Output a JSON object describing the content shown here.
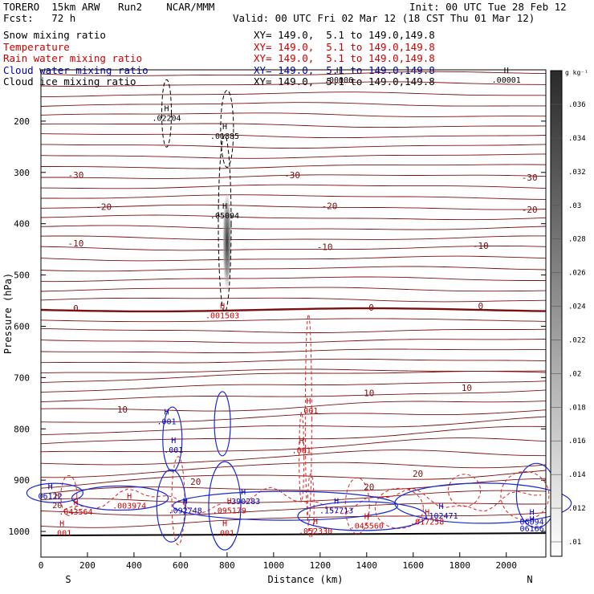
{
  "header": {
    "model": "TORERO  15km ARW   Run2    NCAR/MMM",
    "init": "Init: 00 UTC Tue 28 Feb 12",
    "fcst": "Fcst:   72 h",
    "valid": "Valid: 00 UTC Fri 02 Mar 12 (18 CST Thu 01 Mar 12)"
  },
  "fields": [
    {
      "name": "Snow mixing ratio",
      "xy": "XY= 149.0,  5.1 to 149.0,149.8",
      "color": "#000000"
    },
    {
      "name": "Temperature",
      "xy": "XY= 149.0,  5.1 to 149.0,149.8",
      "color": "#cc0000"
    },
    {
      "name": "Rain water mixing ratio",
      "xy": "XY= 149.0,  5.1 to 149.0,149.8",
      "color": "#cc0000"
    },
    {
      "name": "Cloud water mixing ratio",
      "xy": "XY= 149.0,  5.1 to 149.0,149.8",
      "color": "#0000bb"
    },
    {
      "name": "Cloud ice mixing ratio",
      "xy": "XY= 149.0,  5.1 to 149.0,149.8",
      "color": "#000000"
    }
  ],
  "chart_data": {
    "type": "contour-cross-section",
    "xlabel": "Distance (km)",
    "ylabel": "Pressure (hPa)",
    "xlim": [
      0,
      2170
    ],
    "ylim": [
      1050,
      100
    ],
    "x_ticks": [
      0,
      200,
      400,
      600,
      800,
      1000,
      1200,
      1400,
      1600,
      1800,
      2000
    ],
    "y_ticks": [
      200,
      300,
      400,
      500,
      600,
      700,
      800,
      900,
      1000
    ],
    "x_end_labels": {
      "left": "S",
      "right": "N"
    },
    "colorbar": {
      "unit": "g kg⁻¹",
      "levels": [
        ".01",
        ".012",
        ".014",
        ".016",
        ".018",
        ".02",
        ".022",
        ".024",
        ".026",
        ".028",
        ".03",
        ".032",
        ".034",
        ".036"
      ]
    },
    "temperature_contour_labels": [
      {
        "label": "-30",
        "x": 150,
        "p": 305
      },
      {
        "label": "-30",
        "x": 1080,
        "p": 305
      },
      {
        "label": "-30",
        "x": 2100,
        "p": 310
      },
      {
        "label": "-20",
        "x": 270,
        "p": 367
      },
      {
        "label": "-20",
        "x": 1240,
        "p": 365
      },
      {
        "label": "-20",
        "x": 2100,
        "p": 372
      },
      {
        "label": "-10",
        "x": 150,
        "p": 438
      },
      {
        "label": "-10",
        "x": 1220,
        "p": 445
      },
      {
        "label": "-10",
        "x": 1890,
        "p": 443
      },
      {
        "label": "0",
        "x": 150,
        "p": 565
      },
      {
        "label": "0",
        "x": 1420,
        "p": 563
      },
      {
        "label": "0",
        "x": 1890,
        "p": 560
      },
      {
        "label": "10",
        "x": 350,
        "p": 762
      },
      {
        "label": "10",
        "x": 1410,
        "p": 730
      },
      {
        "label": "10",
        "x": 1830,
        "p": 720
      },
      {
        "label": "20",
        "x": 665,
        "p": 903
      },
      {
        "label": "20",
        "x": 1410,
        "p": 913
      },
      {
        "label": "20",
        "x": 1620,
        "p": 887
      }
    ],
    "extrema_labels": [
      {
        "type": "H",
        "value": ".02204",
        "x": 540,
        "p": 195,
        "field": "ice"
      },
      {
        "type": "H",
        "value": ".01885",
        "x": 790,
        "p": 230,
        "field": "ice"
      },
      {
        "type": "H",
        "value": ".05094",
        "x": 790,
        "p": 385,
        "field": "ice"
      },
      {
        "type": "H",
        "value": ".00006",
        "x": 1280,
        "p": 120,
        "field": "ice"
      },
      {
        "type": "H",
        "value": ".00001",
        "x": 2000,
        "p": 120,
        "field": "ice"
      },
      {
        "type": "H",
        "value": ".001503",
        "x": 780,
        "p": 580,
        "field": "rain"
      },
      {
        "type": "H",
        "value": ".001",
        "x": 1150,
        "p": 765,
        "field": "rain"
      },
      {
        "type": "H",
        "value": ".001",
        "x": 1120,
        "p": 843,
        "field": "rain"
      },
      {
        "type": "H",
        "value": ".001",
        "x": 570,
        "p": 842,
        "field": "cloud"
      },
      {
        "type": "H",
        "value": ".001",
        "x": 540,
        "p": 786,
        "field": "cloud"
      },
      {
        "type": "H",
        "value": "06122",
        "x": 40,
        "p": 932,
        "field": "cloud"
      },
      {
        "type": "H",
        "value": "20",
        "x": 70,
        "p": 950,
        "field": "temp"
      },
      {
        "type": "H",
        "value": ".043564",
        "x": 150,
        "p": 962,
        "field": "rain"
      },
      {
        "type": "H",
        "value": ".003974",
        "x": 380,
        "p": 951,
        "field": "rain"
      },
      {
        "type": "H",
        "value": ".092748",
        "x": 620,
        "p": 960,
        "field": "cloud"
      },
      {
        "type": "H",
        "value": ".095179",
        "x": 810,
        "p": 960,
        "field": "rain"
      },
      {
        "type": "H",
        "value": ".390283",
        "x": 870,
        "p": 942,
        "field": "cloud"
      },
      {
        "type": "H",
        "value": ".157713",
        "x": 1270,
        "p": 960,
        "field": "cloud"
      },
      {
        "type": "H",
        "value": ".102471",
        "x": 1720,
        "p": 970,
        "field": "cloud"
      },
      {
        "type": "H",
        "value": ".017258",
        "x": 1660,
        "p": 982,
        "field": "rain"
      },
      {
        "type": "H",
        "value": ".045560",
        "x": 1400,
        "p": 990,
        "field": "rain"
      },
      {
        "type": "H",
        "value": ".052330",
        "x": 1180,
        "p": 1000,
        "field": "rain"
      },
      {
        "type": "H",
        "value": "06094",
        "x": 2110,
        "p": 982,
        "field": "cloud"
      },
      {
        "type": "H",
        "value": "06166",
        "x": 2110,
        "p": 995,
        "field": "cloud"
      },
      {
        "type": "H",
        "value": ".001",
        "x": 90,
        "p": 1004,
        "field": "rain"
      },
      {
        "type": "H",
        "value": ".001",
        "x": 790,
        "p": 1004,
        "field": "rain"
      }
    ],
    "snow_column": {
      "x": 800,
      "p_top": 370,
      "p_bottom": 520,
      "max": 0.036
    },
    "surface_pressure": 1008
  }
}
